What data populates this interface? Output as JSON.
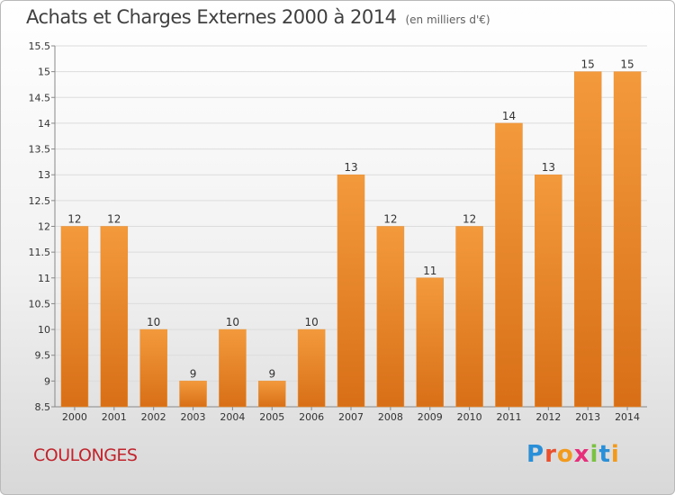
{
  "header": {
    "title": "Achats et Charges Externes 2000 à 2014",
    "subtitle": "(en milliers d'€)"
  },
  "footer": {
    "commune": "COULONGES",
    "logo": "Proxiti",
    "logo_colors": [
      "#2a8fd6",
      "#e8502e",
      "#f29a1e",
      "#e62e7a",
      "#7bc143",
      "#2a8fd6",
      "#f29a1e"
    ]
  },
  "chart_data": {
    "type": "bar",
    "title": "Achats et Charges Externes 2000 à 2014",
    "subtitle": "(en milliers d'€)",
    "categories": [
      "2000",
      "2001",
      "2002",
      "2003",
      "2004",
      "2005",
      "2006",
      "2007",
      "2008",
      "2009",
      "2010",
      "2011",
      "2012",
      "2013",
      "2014"
    ],
    "values": [
      12,
      12,
      10,
      9,
      10,
      9,
      10,
      13,
      12,
      11,
      12,
      14,
      13,
      15,
      15
    ],
    "value_labels": [
      "12",
      "12",
      "10",
      "9",
      "10",
      "9",
      "10",
      "13",
      "12",
      "11",
      "12",
      "14",
      "13",
      "15",
      "15"
    ],
    "ylim": [
      8.5,
      15.5
    ],
    "yticks": [
      8.5,
      9,
      9.5,
      10,
      10.5,
      11,
      11.5,
      12,
      12.5,
      13,
      13.5,
      14,
      14.5,
      15,
      15.5
    ],
    "ytick_labels": [
      "8.5",
      "9",
      "9.5",
      "10",
      "10.5",
      "11",
      "11.5",
      "12",
      "12.5",
      "13",
      "13.5",
      "14",
      "14.5",
      "15",
      "15.5"
    ],
    "grid": true,
    "bar_color": "#f39a3c",
    "bar_color_dark": "#d86f17",
    "xlabel": "",
    "ylabel": ""
  }
}
